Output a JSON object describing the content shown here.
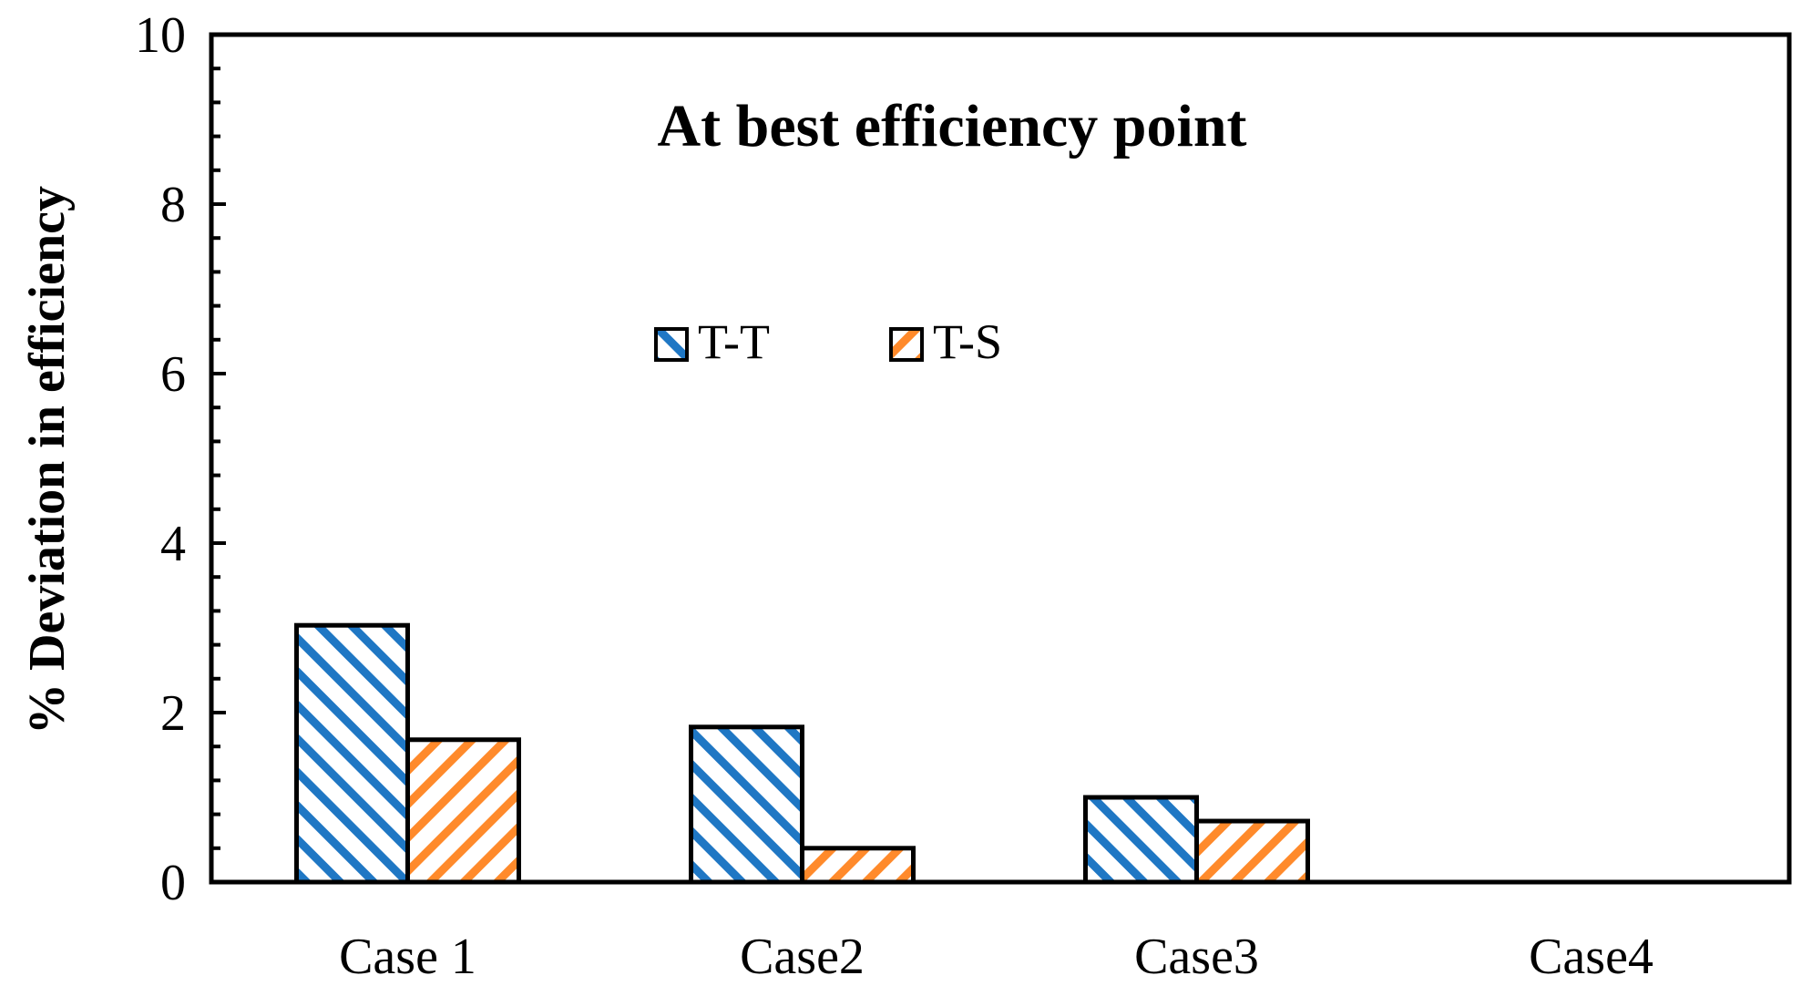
{
  "chart_data": {
    "type": "bar",
    "title": "At best efficiency point",
    "xlabel": "",
    "ylabel": "% Deviation in efficiency",
    "categories": [
      "Case 1",
      "Case2",
      "Case3",
      "Case4"
    ],
    "series": [
      {
        "name": "T-T",
        "values": [
          3.03,
          1.83,
          1.0,
          0
        ],
        "color": "#1f77c4"
      },
      {
        "name": "T-S",
        "values": [
          1.68,
          0.4,
          0.72,
          0
        ],
        "color": "#ff8a2b"
      }
    ],
    "ylim": [
      0,
      10
    ],
    "yticks": [
      "0",
      "2",
      "4",
      "6",
      "8",
      "10"
    ],
    "grid": false,
    "legend_position": "upper-center"
  }
}
